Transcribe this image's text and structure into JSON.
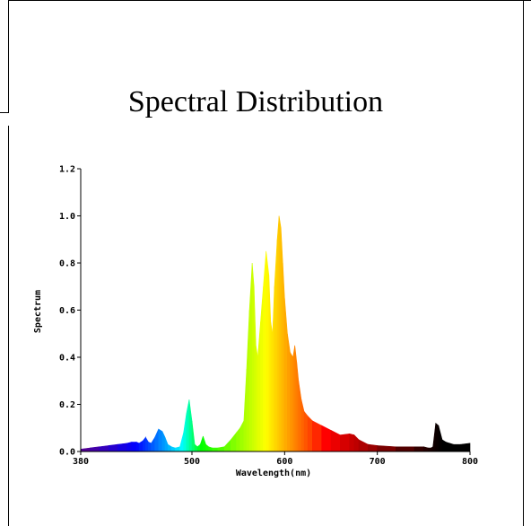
{
  "chart_data": {
    "type": "area",
    "title": "Spectral Distribution",
    "xlabel": "Wavelength(nm)",
    "ylabel": "Spectrum",
    "xlim": [
      380,
      800
    ],
    "ylim": [
      0,
      1.2
    ],
    "x_ticks": [
      380,
      500,
      600,
      700,
      800
    ],
    "x_tick_labels": [
      "380",
      "500",
      "600",
      "700",
      "800"
    ],
    "y_ticks": [
      0.0,
      0.2,
      0.4,
      0.6,
      0.8,
      1.0,
      1.2
    ],
    "y_tick_labels": [
      "0.0",
      "0.2",
      "0.4",
      "0.6",
      "0.8",
      "1.0",
      "1.2"
    ],
    "grid": false,
    "fill": "wavelength-colored spectrum",
    "series": [
      {
        "x": [
          380,
          390,
          400,
          410,
          420,
          430,
          435,
          440,
          443,
          447,
          450,
          453,
          456,
          460,
          464,
          468,
          471,
          474,
          478,
          482,
          487,
          491,
          494,
          497,
          500,
          503,
          506,
          509,
          512,
          515,
          518,
          522,
          528,
          535,
          542,
          548,
          552,
          556,
          559,
          562,
          565,
          567,
          569,
          571,
          574,
          577,
          580,
          583,
          585,
          587,
          589,
          592,
          594,
          596,
          598,
          600,
          603,
          606,
          609,
          611,
          613,
          615,
          618,
          621,
          625,
          630,
          640,
          650,
          660,
          670,
          675,
          680,
          690,
          700,
          720,
          740,
          750,
          755,
          758,
          760,
          763,
          766,
          770,
          774,
          778,
          782,
          790,
          800
        ],
        "y": [
          0.01,
          0.015,
          0.02,
          0.025,
          0.03,
          0.035,
          0.04,
          0.04,
          0.035,
          0.045,
          0.06,
          0.04,
          0.035,
          0.06,
          0.095,
          0.085,
          0.06,
          0.03,
          0.02,
          0.015,
          0.02,
          0.08,
          0.16,
          0.22,
          0.13,
          0.03,
          0.02,
          0.03,
          0.065,
          0.03,
          0.02,
          0.015,
          0.015,
          0.02,
          0.05,
          0.08,
          0.1,
          0.13,
          0.35,
          0.6,
          0.8,
          0.7,
          0.45,
          0.4,
          0.55,
          0.7,
          0.85,
          0.75,
          0.55,
          0.5,
          0.7,
          0.9,
          1.0,
          0.95,
          0.8,
          0.65,
          0.5,
          0.42,
          0.4,
          0.45,
          0.38,
          0.3,
          0.22,
          0.17,
          0.15,
          0.13,
          0.11,
          0.09,
          0.07,
          0.075,
          0.07,
          0.05,
          0.03,
          0.025,
          0.02,
          0.02,
          0.02,
          0.015,
          0.015,
          0.02,
          0.12,
          0.11,
          0.05,
          0.04,
          0.035,
          0.03,
          0.03,
          0.035
        ]
      }
    ]
  }
}
